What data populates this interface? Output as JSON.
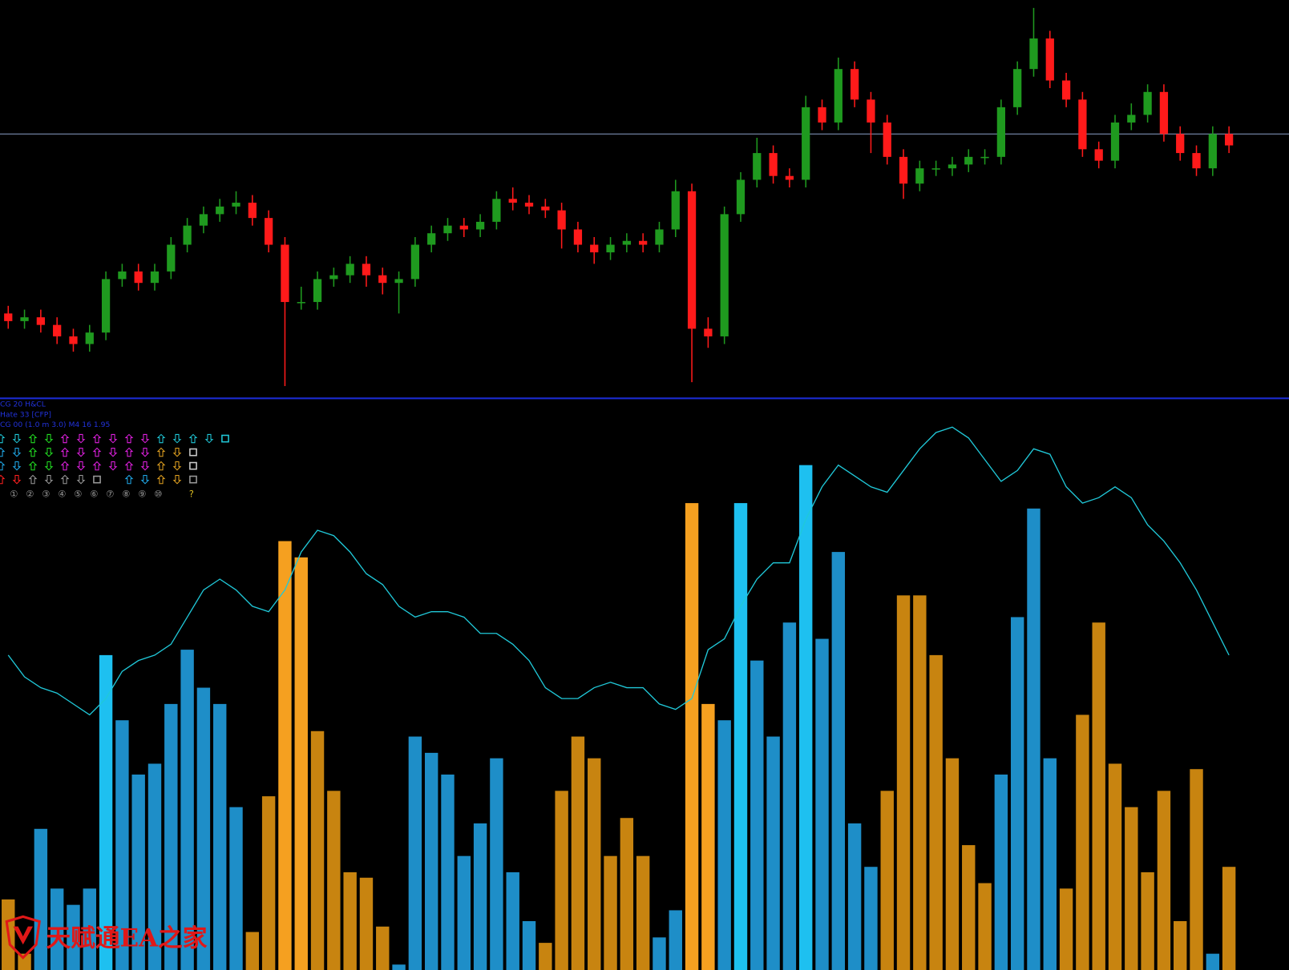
{
  "chart_data": [
    {
      "type": "candlestick",
      "open": [
        19,
        17,
        18,
        16,
        13,
        11,
        14,
        28,
        30,
        27,
        30,
        37,
        42,
        45,
        47,
        48,
        44,
        37,
        22,
        22,
        28,
        29,
        32,
        29,
        27,
        28,
        37,
        40,
        42,
        41,
        43,
        49,
        48,
        47,
        46,
        41,
        37,
        35,
        37,
        38,
        37,
        41,
        51,
        15,
        13,
        45,
        54,
        61,
        55,
        54,
        73,
        69,
        83,
        75,
        69,
        60,
        53,
        57,
        57,
        58,
        60,
        60,
        73,
        83,
        91,
        80,
        75,
        62,
        59,
        69,
        71,
        77,
        66,
        61,
        57,
        66
      ],
      "high": [
        21,
        20,
        20,
        18,
        15,
        16,
        30,
        32,
        32,
        32,
        39,
        44,
        47,
        49,
        51,
        50,
        46,
        39,
        26,
        30,
        31,
        34,
        34,
        31,
        30,
        39,
        42,
        44,
        44,
        45,
        51,
        52,
        50,
        49,
        48,
        43,
        39,
        39,
        40,
        40,
        43,
        54,
        53,
        18,
        47,
        56,
        65,
        63,
        57,
        76,
        75,
        86,
        85,
        77,
        71,
        62,
        59,
        59,
        60,
        62,
        62,
        75,
        85,
        99,
        93,
        82,
        77,
        64,
        71,
        74,
        79,
        79,
        68,
        63,
        68,
        68
      ],
      "low": [
        15,
        15,
        14,
        11,
        9,
        9,
        12,
        26,
        25,
        25,
        28,
        35,
        40,
        43,
        45,
        42,
        35,
        0,
        20,
        20,
        26,
        27,
        26,
        24,
        19,
        26,
        35,
        38,
        39,
        39,
        41,
        46,
        45,
        44,
        36,
        35,
        32,
        33,
        35,
        35,
        35,
        39,
        1,
        10,
        11,
        43,
        52,
        53,
        52,
        52,
        67,
        67,
        73,
        61,
        58,
        49,
        51,
        55,
        55,
        56,
        58,
        58,
        71,
        81,
        78,
        73,
        60,
        57,
        57,
        67,
        69,
        64,
        59,
        55,
        55,
        61
      ],
      "close": [
        17,
        18,
        16,
        13,
        11,
        14,
        28,
        30,
        27,
        30,
        37,
        42,
        45,
        47,
        48,
        44,
        37,
        22,
        22,
        28,
        29,
        32,
        29,
        27,
        28,
        37,
        40,
        42,
        41,
        43,
        49,
        48,
        47,
        46,
        41,
        37,
        35,
        37,
        38,
        37,
        41,
        51,
        15,
        13,
        45,
        54,
        61,
        55,
        54,
        73,
        69,
        83,
        75,
        69,
        60,
        53,
        57,
        57,
        58,
        60,
        60,
        73,
        83,
        91,
        80,
        75,
        62,
        59,
        69,
        71,
        77,
        66,
        61,
        57,
        66,
        63
      ],
      "up_color": "#1f9a1f",
      "down_color": "#ff1a1a",
      "ylim": [
        0,
        100
      ],
      "hline": 66,
      "hline_color": "#8aa0c8"
    },
    {
      "type": "bar",
      "indicator_labels": [
        "CG 20 H&CL",
        "Hate 33 [CFP]",
        "CG 00 (1.0 m 3.0) M4 16 1.95"
      ],
      "signal_labels": [
        "①",
        "②",
        "③",
        "④",
        "⑤",
        "⑥",
        "⑦",
        "⑧",
        "⑨",
        "⑩"
      ],
      "signal_note": "?",
      "values": [
        13,
        3,
        26,
        15,
        12,
        15,
        58,
        46,
        36,
        38,
        49,
        59,
        52,
        49,
        30,
        7,
        32,
        79,
        76,
        44,
        33,
        18,
        17,
        8,
        1,
        43,
        40,
        36,
        21,
        27,
        39,
        18,
        9,
        5,
        33,
        43,
        39,
        21,
        28,
        21,
        6,
        11,
        86,
        49,
        46,
        86,
        57,
        43,
        64,
        93,
        61,
        77,
        27,
        19,
        33,
        69,
        69,
        58,
        39,
        23,
        16,
        36,
        65,
        85,
        39,
        15,
        47,
        64,
        38,
        30,
        18,
        33,
        9,
        37,
        3,
        19
      ],
      "bar_colors": [
        "#c88410",
        "#c88410",
        "#1e8ec8",
        "#1e8ec8",
        "#1e8ec8",
        "#1e8ec8",
        "#1ec0f0",
        "#1e8ec8",
        "#1e8ec8",
        "#1e8ec8",
        "#1e8ec8",
        "#1e8ec8",
        "#1e8ec8",
        "#1e8ec8",
        "#1e8ec8",
        "#c88410",
        "#c88410",
        "#f5a020",
        "#f5a020",
        "#c88410",
        "#c88410",
        "#c88410",
        "#c88410",
        "#c88410",
        "#1e8ec8",
        "#1e8ec8",
        "#1e8ec8",
        "#1e8ec8",
        "#1e8ec8",
        "#1e8ec8",
        "#1e8ec8",
        "#1e8ec8",
        "#1e8ec8",
        "#c88410",
        "#c88410",
        "#c88410",
        "#c88410",
        "#c88410",
        "#c88410",
        "#c88410",
        "#1e8ec8",
        "#1e8ec8",
        "#f5a020",
        "#f5a020",
        "#1e8ec8",
        "#1ec0f0",
        "#1e8ec8",
        "#1e8ec8",
        "#1e8ec8",
        "#1ec0f0",
        "#1e8ec8",
        "#1e8ec8",
        "#1e8ec8",
        "#1e8ec8",
        "#c88410",
        "#c88410",
        "#c88410",
        "#c88410",
        "#c88410",
        "#c88410",
        "#c88410",
        "#1e8ec8",
        "#1e8ec8",
        "#1e8ec8",
        "#1e8ec8",
        "#c88410",
        "#c88410",
        "#c88410",
        "#c88410",
        "#c88410",
        "#c88410",
        "#c88410",
        "#c88410",
        "#c88410",
        "#1e8ec8",
        "#c88410"
      ],
      "line": {
        "color": "#20c8d8",
        "values": [
          58,
          54,
          52,
          51,
          49,
          47,
          50,
          55,
          57,
          58,
          60,
          65,
          70,
          72,
          70,
          67,
          66,
          70,
          77,
          81,
          80,
          77,
          73,
          71,
          67,
          65,
          66,
          66,
          65,
          62,
          62,
          60,
          57,
          52,
          50,
          50,
          52,
          53,
          52,
          52,
          49,
          48,
          50,
          59,
          61,
          67,
          72,
          75,
          75,
          83,
          89,
          93,
          91,
          89,
          88,
          92,
          96,
          99,
          100,
          98,
          94,
          90,
          92,
          96,
          95,
          89,
          86,
          87,
          89,
          87,
          82,
          79,
          75,
          70,
          64,
          58
        ]
      },
      "ylim": [
        0,
        100
      ]
    }
  ],
  "watermark": "天赋通EA之家"
}
